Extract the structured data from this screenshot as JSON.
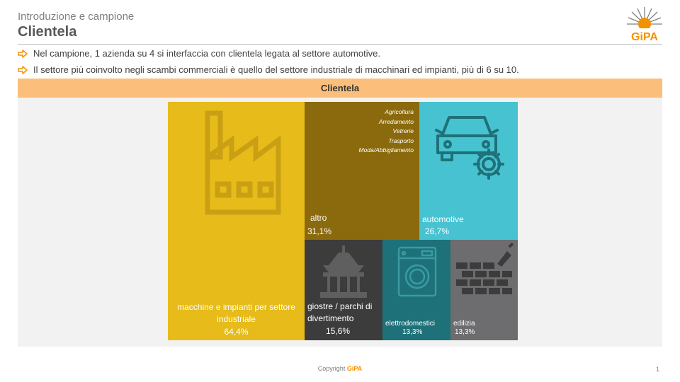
{
  "header": {
    "subtitle": "Introduzione e campione",
    "title": "Clientela",
    "logo_text": "GiPA"
  },
  "bullets": [
    "Nel campione, 1 azienda su 4 si interfaccia con clientela legata al settore automotive.",
    "Il settore più coinvolto negli scambi commerciali è quello del settore industriale di macchinari ed impianti, più di 6 su 10."
  ],
  "panel": {
    "title": "Clientela"
  },
  "chart_data": {
    "type": "treemap",
    "title": "Clientela",
    "unit": "%",
    "series": [
      {
        "name": "macchine e impianti per settore industriale",
        "value": 64.4,
        "value_label": "64,4%",
        "icon": "factory-icon",
        "color": "#e6bb1a"
      },
      {
        "name": "altro",
        "value": 31.1,
        "value_label": "31,1%",
        "icon": "",
        "color": "#8a6a0c",
        "details": [
          "Agricoltura",
          "Arredamento",
          "Vetrerie",
          "Trasporto",
          "Moda/Abbigliamento"
        ]
      },
      {
        "name": "automotive",
        "value": 26.7,
        "value_label": "26,7%",
        "icon": "car-gear-icon",
        "color": "#47c2d1"
      },
      {
        "name": "giostre / parchi di divertimento",
        "value": 15.6,
        "value_label": "15,6%",
        "icon": "carousel-icon",
        "color": "#3c3c3c"
      },
      {
        "name": "elettrodomestici",
        "value": 13.3,
        "value_label": "13,3%",
        "icon": "washing-machine-icon",
        "color": "#1e7178"
      },
      {
        "name": "edilizia",
        "value": 13.3,
        "value_label": "13,3%",
        "icon": "brick-wall-icon",
        "color": "#6d6d6f"
      }
    ]
  },
  "footer": {
    "copyright": "Copyright",
    "brand": "GiPA",
    "page_number": "1"
  },
  "colors": {
    "accent": "#f39200",
    "panel_header": "#fbbf7b",
    "panel_bg": "#f2f2f2"
  }
}
